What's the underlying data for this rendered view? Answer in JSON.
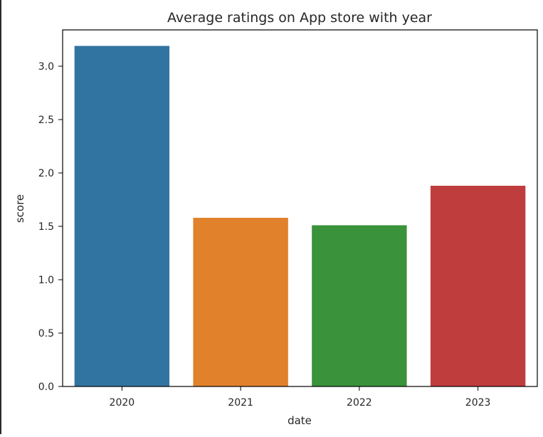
{
  "chart_data": {
    "type": "bar",
    "title": "Average ratings on App store with year",
    "xlabel": "date",
    "ylabel": "score",
    "categories": [
      "2020",
      "2021",
      "2022",
      "2023"
    ],
    "values": [
      3.19,
      1.58,
      1.51,
      1.88
    ],
    "ylim": [
      0,
      3.34
    ],
    "yticks": [
      0,
      0.5,
      1,
      1.5,
      2,
      2.5,
      3
    ],
    "ytick_labels": [
      "0.0",
      "0.5",
      "1.0",
      "1.5",
      "2.0",
      "2.5",
      "3.0"
    ],
    "colors": [
      "#3274a1",
      "#e1812c",
      "#3a923a",
      "#c03d3e"
    ],
    "grid": false,
    "legend": "none"
  }
}
